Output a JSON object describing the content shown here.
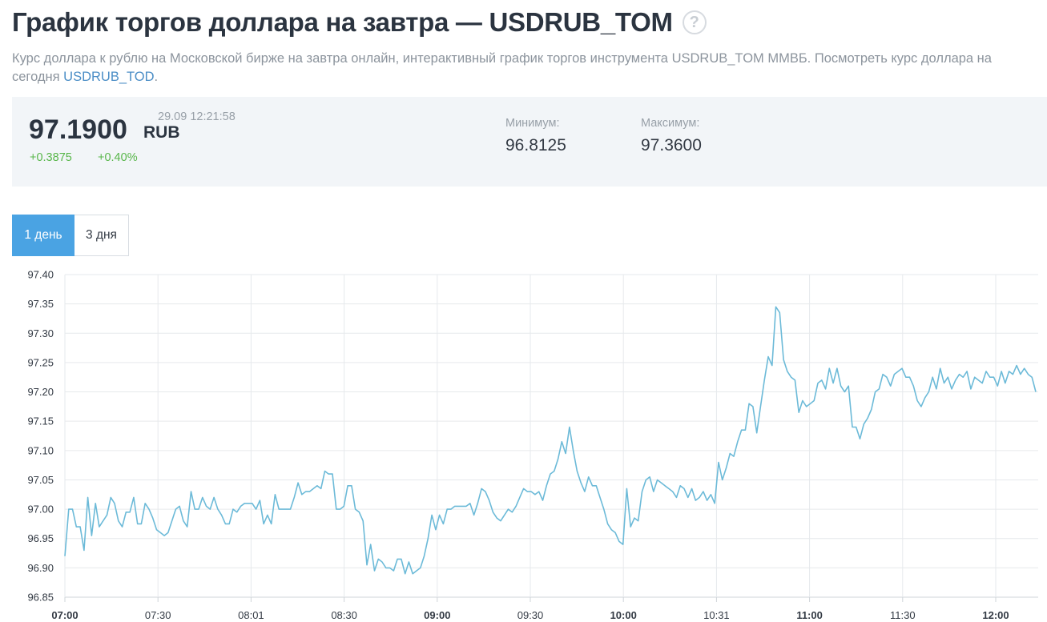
{
  "header": {
    "title": "График торгов доллара на завтра — USDRUB_TOM",
    "help_icon": "question-circle-icon",
    "description_text": "Курс доллара к рублю на Московской бирже на завтра онлайн, интерактивный график торгов инструмента USDRUB_TOM ММВБ. Посмотреть курс доллара на сегодня ",
    "description_link": "USDRUB_TOD",
    "description_end": "."
  },
  "quote": {
    "price": "97.1900",
    "currency": "RUB",
    "timestamp": "29.09 12:21:58",
    "change_abs": "+0.3875",
    "change_pct": "+0.40%",
    "min_label": "Минимум:",
    "min_value": "96.8125",
    "max_label": "Максимум:",
    "max_value": "97.3600"
  },
  "range_tabs": [
    {
      "label": "1 день",
      "active": true
    },
    {
      "label": "3 дня",
      "active": false
    }
  ],
  "colors": {
    "line": "#6cbad8",
    "grid": "#e6e9ec",
    "accent": "#4aa3e3",
    "positive": "#58b64a"
  },
  "chart_data": {
    "type": "line",
    "ylim": [
      96.85,
      97.4
    ],
    "yticks": [
      "97.40",
      "97.35",
      "97.30",
      "97.25",
      "97.20",
      "97.15",
      "97.10",
      "97.05",
      "97.00",
      "96.95",
      "96.90",
      "96.85"
    ],
    "grid": true,
    "xticks": [
      {
        "label": "07:00",
        "bold": true
      },
      {
        "label": "07:30",
        "bold": false
      },
      {
        "label": "08:01",
        "bold": false
      },
      {
        "label": "08:30",
        "bold": false
      },
      {
        "label": "09:00",
        "bold": true
      },
      {
        "label": "09:30",
        "bold": false
      },
      {
        "label": "10:00",
        "bold": true
      },
      {
        "label": "10:31",
        "bold": false
      },
      {
        "label": "11:00",
        "bold": true
      },
      {
        "label": "11:30",
        "bold": false
      },
      {
        "label": "12:00",
        "bold": true
      }
    ],
    "series": [
      {
        "values": [
          96.92,
          97.0,
          97.0,
          96.97,
          96.97,
          96.93,
          97.02,
          96.955,
          97.01,
          96.97,
          96.98,
          96.99,
          97.02,
          97.01,
          96.98,
          96.97,
          96.995,
          96.995,
          97.02,
          96.975,
          96.975,
          97.01,
          97.0,
          96.985,
          96.965,
          96.96,
          96.955,
          96.96,
          96.98,
          97.0,
          97.005,
          96.98,
          96.97,
          97.03,
          97.0,
          97.0,
          97.02,
          97.005,
          97.0,
          97.02,
          97.0,
          96.99,
          96.975,
          96.975,
          97.0,
          96.995,
          97.005,
          97.01,
          97.01,
          97.01,
          97.0,
          97.015,
          96.975,
          96.99,
          96.975,
          97.025,
          97.0,
          97.0,
          97.0,
          97.0,
          97.02,
          97.045,
          97.025,
          97.03,
          97.03,
          97.035,
          97.04,
          97.035,
          97.065,
          97.06,
          97.06,
          97.0,
          97.0,
          97.005,
          97.04,
          97.04,
          97.0,
          96.995,
          96.98,
          96.905,
          96.94,
          96.895,
          96.915,
          96.91,
          96.9,
          96.9,
          96.895,
          96.915,
          96.915,
          96.89,
          96.91,
          96.89,
          96.895,
          96.9,
          96.92,
          96.95,
          96.99,
          96.965,
          96.99,
          96.975,
          97.0,
          97.0,
          97.005,
          97.005,
          97.005,
          97.005,
          97.01,
          96.99,
          97.01,
          97.035,
          97.03,
          97.015,
          96.995,
          96.985,
          96.98,
          96.99,
          97.0,
          96.995,
          97.005,
          97.02,
          97.035,
          97.03,
          97.03,
          97.025,
          97.03,
          97.015,
          97.04,
          97.06,
          97.065,
          97.085,
          97.115,
          97.095,
          97.14,
          97.1,
          97.065,
          97.045,
          97.03,
          97.055,
          97.04,
          97.04,
          97.02,
          97.0,
          96.975,
          96.965,
          96.96,
          96.945,
          96.94,
          97.035,
          96.97,
          96.985,
          96.98,
          97.03,
          97.05,
          97.055,
          97.03,
          97.05,
          97.045,
          97.04,
          97.035,
          97.03,
          97.02,
          97.04,
          97.035,
          97.02,
          97.035,
          97.015,
          97.02,
          97.03,
          97.015,
          97.025,
          97.01,
          97.08,
          97.05,
          97.07,
          97.095,
          97.09,
          97.115,
          97.135,
          97.135,
          97.18,
          97.175,
          97.13,
          97.175,
          97.22,
          97.26,
          97.245,
          97.345,
          97.335,
          97.255,
          97.235,
          97.225,
          97.22,
          97.165,
          97.185,
          97.175,
          97.18,
          97.185,
          97.215,
          97.22,
          97.205,
          97.24,
          97.215,
          97.24,
          97.21,
          97.2,
          97.21,
          97.14,
          97.14,
          97.12,
          97.145,
          97.155,
          97.17,
          97.2,
          97.205,
          97.23,
          97.225,
          97.21,
          97.23,
          97.235,
          97.24,
          97.225,
          97.225,
          97.21,
          97.185,
          97.175,
          97.19,
          97.2,
          97.225,
          97.205,
          97.24,
          97.215,
          97.225,
          97.205,
          97.22,
          97.23,
          97.225,
          97.235,
          97.205,
          97.225,
          97.22,
          97.215,
          97.235,
          97.225,
          97.225,
          97.21,
          97.235,
          97.215,
          97.235,
          97.23,
          97.245,
          97.23,
          97.24,
          97.23,
          97.225,
          97.2
        ]
      }
    ]
  }
}
